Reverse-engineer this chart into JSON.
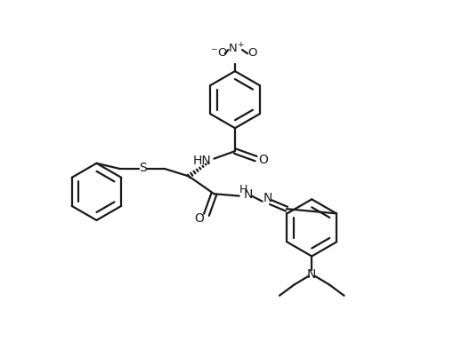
{
  "bg_color": "#ffffff",
  "line_color": "#1a1a1a",
  "line_width": 1.6,
  "font_size": 10,
  "figsize": [
    5.28,
    3.94
  ],
  "dpi": 100,
  "xlim": [
    0,
    11
  ],
  "ylim": [
    0,
    8.3
  ]
}
